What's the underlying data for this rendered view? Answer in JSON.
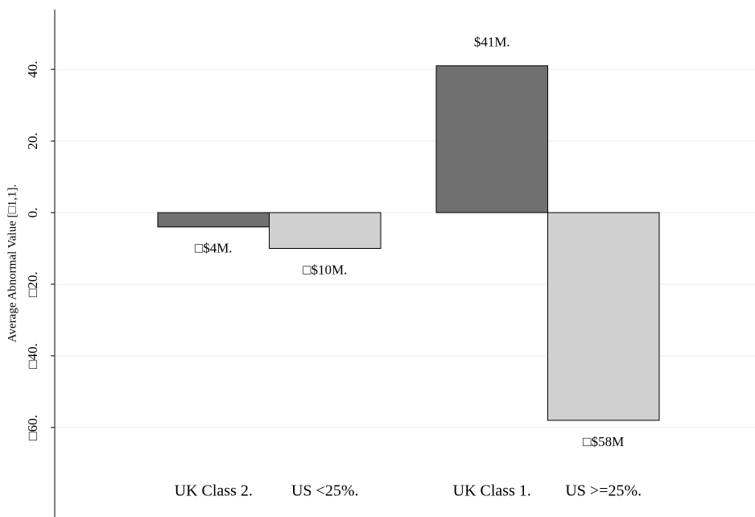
{
  "chart_data": {
    "type": "bar",
    "y_label": "Average Abnormal Value [□1,1].",
    "categories": [
      "UK Class 2.",
      "US <25%.",
      "UK Class 1.",
      "US >=25%."
    ],
    "values": [
      -4,
      -10,
      41,
      -58
    ],
    "value_labels": [
      "□$4M.",
      "□$10M.",
      "$41M.",
      "□$58M"
    ],
    "colors": [
      "#707070",
      "#d0d0d0",
      "#707070",
      "#d0d0d0"
    ],
    "ylim": [
      -85,
      56
    ],
    "yticks": [
      {
        "value": -60,
        "label": "□60."
      },
      {
        "value": -40,
        "label": "□40."
      },
      {
        "value": -20,
        "label": "□20."
      },
      {
        "value": 0,
        "label": "0."
      },
      {
        "value": 20,
        "label": "20."
      },
      {
        "value": 40,
        "label": "40."
      }
    ],
    "grid": true
  }
}
